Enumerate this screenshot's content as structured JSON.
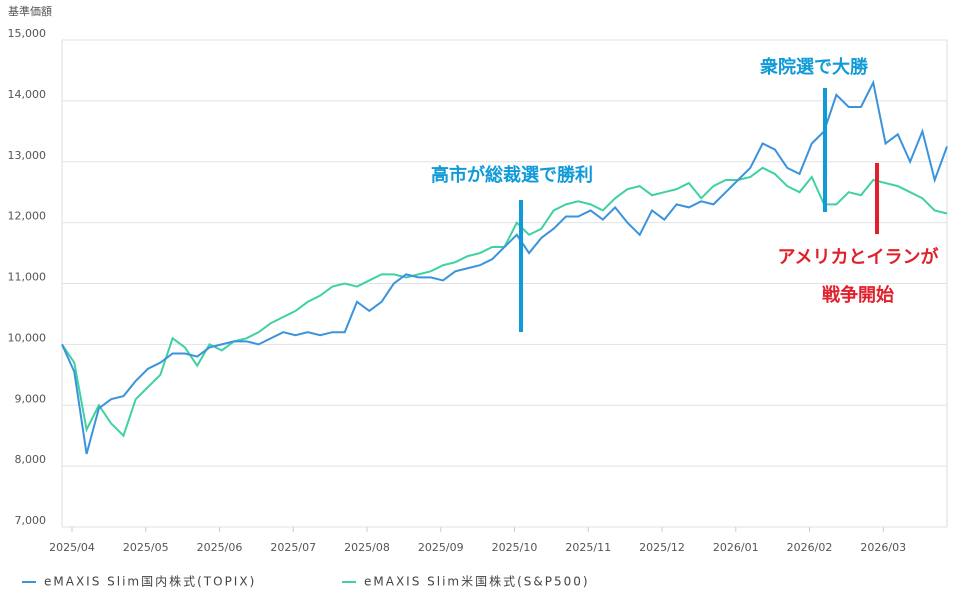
{
  "chart_data": {
    "type": "line",
    "y_label": "基準価額",
    "categories": [
      "2025/04",
      null,
      null,
      null,
      null,
      null,
      "2025/05",
      null,
      null,
      null,
      null,
      null,
      "2025/06",
      null,
      null,
      null,
      null,
      null,
      "2025/07",
      null,
      null,
      null,
      null,
      null,
      "2025/08",
      null,
      null,
      null,
      null,
      null,
      "2025/09",
      null,
      null,
      null,
      null,
      null,
      "2025/10",
      null,
      null,
      null,
      null,
      null,
      "2025/11",
      null,
      null,
      null,
      null,
      null,
      "2025/12",
      null,
      null,
      null,
      null,
      null,
      "2026/01",
      null,
      null,
      null,
      null,
      null,
      "2026/02",
      null,
      null,
      null,
      null,
      null,
      "2026/03",
      null,
      null,
      null,
      null,
      null,
      null
    ],
    "series": [
      {
        "name": "eMAXIS Slim国内株式(TOPIX)",
        "color": "#3a93dc",
        "values": [
          10000,
          9550,
          8200,
          8950,
          9100,
          9150,
          9400,
          9600,
          9700,
          9850,
          9850,
          9800,
          9950,
          10000,
          10050,
          10050,
          10000,
          10100,
          10200,
          10150,
          10200,
          10150,
          10200,
          10200,
          10700,
          10550,
          10700,
          11000,
          11150,
          11100,
          11100,
          11050,
          11200,
          11250,
          11300,
          11400,
          11600,
          11800,
          11500,
          11750,
          11900,
          12100,
          12100,
          12200,
          12050,
          12250,
          12000,
          11800,
          12200,
          12050,
          12300,
          12250,
          12350,
          12300,
          12500,
          12700,
          12900,
          13300,
          13200,
          12900,
          12800,
          13300,
          13500,
          14100,
          13900,
          13900,
          14300,
          13300,
          13450,
          13000,
          13500,
          12700,
          13250
        ]
      },
      {
        "name": "eMAXIS Slim米国株式(S&P500)",
        "color": "#3fd2a0",
        "values": [
          10000,
          9700,
          8600,
          9000,
          8700,
          8500,
          9100,
          9300,
          9500,
          10100,
          9950,
          9650,
          10000,
          9900,
          10050,
          10100,
          10200,
          10350,
          10450,
          10550,
          10700,
          10800,
          10950,
          11000,
          10950,
          11050,
          11150,
          11150,
          11100,
          11150,
          11200,
          11300,
          11350,
          11450,
          11500,
          11600,
          11600,
          12000,
          11800,
          11900,
          12200,
          12300,
          12350,
          12300,
          12200,
          12400,
          12550,
          12600,
          12450,
          12500,
          12550,
          12650,
          12400,
          12600,
          12700,
          12700,
          12750,
          12900,
          12800,
          12600,
          12500,
          12750,
          12300,
          12300,
          12500,
          12450,
          12700,
          12650,
          12600,
          12500,
          12400,
          12200,
          12150
        ]
      }
    ],
    "ylim": [
      7000,
      15000
    ],
    "yticks": [
      {
        "value": 7000,
        "label": "7,000"
      },
      {
        "value": 8000,
        "label": "8,000"
      },
      {
        "value": 9000,
        "label": "9,000"
      },
      {
        "value": 10000,
        "label": "10,000"
      },
      {
        "value": 11000,
        "label": "11,000"
      },
      {
        "value": 12000,
        "label": "12,000"
      },
      {
        "value": 13000,
        "label": "13,000"
      },
      {
        "value": 14000,
        "label": "14,000"
      },
      {
        "value": 15000,
        "label": "15,000"
      }
    ],
    "grid": true,
    "legend": "bottom",
    "annotations": [
      {
        "text": [
          "高市が総裁選で勝利"
        ],
        "color": "#109ad8"
      },
      {
        "text": [
          "衆院選で大勝"
        ],
        "color": "#109ad8"
      },
      {
        "text": [
          "アメリカとイランが",
          "戦争開始"
        ],
        "color": "#e0202a"
      }
    ]
  }
}
